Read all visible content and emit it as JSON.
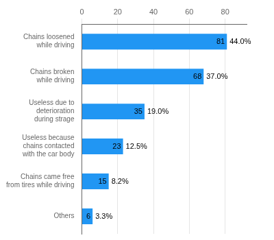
{
  "chart_data": {
    "type": "bar",
    "orientation": "horizontal",
    "categories": [
      "Others",
      "Chains came free\nfrom tires while driving",
      "Useless because\nchains contacted\nwith the car body",
      "Useless due to\ndeterioration\nduring strage",
      "Chains broken\nwhile driving",
      "Chains loosened\nwhile driving"
    ],
    "values": [
      6,
      15,
      23,
      35,
      68,
      81
    ],
    "percentages": [
      "3.3%",
      "8.2%",
      "12.5%",
      "19.0%",
      "37.0%",
      "44.0%"
    ],
    "color": "#2196F3",
    "xlim": [
      0,
      92
    ],
    "xticks": [
      0,
      20,
      40,
      60,
      80
    ],
    "grid": true,
    "data_labels": true
  }
}
